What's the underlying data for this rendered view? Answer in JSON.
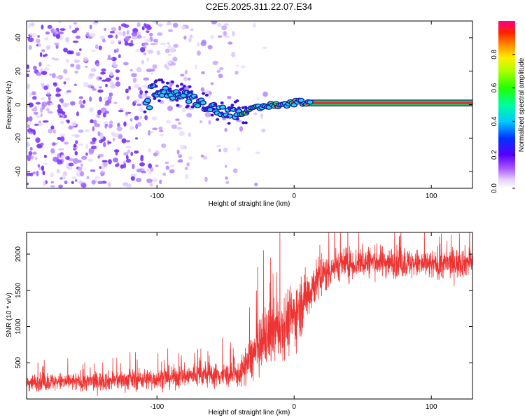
{
  "chart_data": [
    {
      "type": "heatmap",
      "title": "C2E5.2025.311.22.07.E34",
      "xlabel": "Height of straight line (km)",
      "ylabel": "Frequency (Hz)",
      "xlim": [
        -195,
        130
      ],
      "ylim": [
        -50,
        50
      ],
      "x_ticks": [
        -100,
        0,
        100
      ],
      "x_tick_labels": [
        "-100",
        "0",
        "100"
      ],
      "y_ticks": [
        -40,
        -20,
        0,
        20,
        40
      ],
      "y_tick_labels": [
        "-40",
        "-20",
        "0",
        "20",
        "40"
      ],
      "colorbar": {
        "label": "Normalized spectral amplitude",
        "range": [
          0,
          1
        ],
        "ticks": [
          0.0,
          0.2,
          0.4,
          0.6,
          0.8
        ],
        "tick_labels": [
          "0.0",
          "0.2",
          "0.4",
          "0.6",
          "0.8"
        ]
      },
      "ridge": {
        "description_points": [
          [
            -105,
            9
          ],
          [
            -95,
            8
          ],
          [
            -85,
            6
          ],
          [
            -75,
            4
          ],
          [
            -65,
            0
          ],
          [
            -55,
            -3
          ],
          [
            -45,
            -5
          ],
          [
            -35,
            -4
          ],
          [
            -25,
            -2
          ],
          [
            -15,
            0
          ],
          [
            -5,
            0
          ],
          [
            0,
            1
          ],
          [
            3,
            3
          ],
          [
            5,
            2
          ],
          [
            10,
            1
          ],
          [
            130,
            1
          ]
        ],
        "band_half_width": 2
      }
    },
    {
      "type": "line",
      "xlabel": "Height of straight line (km)",
      "ylabel": "SNR (10 * v/v)",
      "xlim": [
        -195,
        130
      ],
      "ylim": [
        0,
        2300
      ],
      "x_ticks": [
        -100,
        0,
        100
      ],
      "x_tick_labels": [
        "-100",
        "0",
        "100"
      ],
      "y_ticks": [
        500,
        1000,
        1500,
        2000
      ],
      "y_tick_labels": [
        "500",
        "1000",
        "1500",
        "2000"
      ],
      "color": "#ee3333",
      "series_envelope": [
        {
          "x": -195,
          "y": 230,
          "spread": 130
        },
        {
          "x": -150,
          "y": 240,
          "spread": 140
        },
        {
          "x": -100,
          "y": 280,
          "spread": 160
        },
        {
          "x": -70,
          "y": 330,
          "spread": 180
        },
        {
          "x": -40,
          "y": 330,
          "spread": 180
        },
        {
          "x": -32,
          "y": 550,
          "spread": 350
        },
        {
          "x": -20,
          "y": 850,
          "spread": 450
        },
        {
          "x": 0,
          "y": 1150,
          "spread": 500
        },
        {
          "x": 15,
          "y": 1600,
          "spread": 350
        },
        {
          "x": 30,
          "y": 1850,
          "spread": 250
        },
        {
          "x": 60,
          "y": 1900,
          "spread": 230
        },
        {
          "x": 100,
          "y": 1850,
          "spread": 220
        },
        {
          "x": 130,
          "y": 1900,
          "spread": 230
        }
      ]
    }
  ]
}
